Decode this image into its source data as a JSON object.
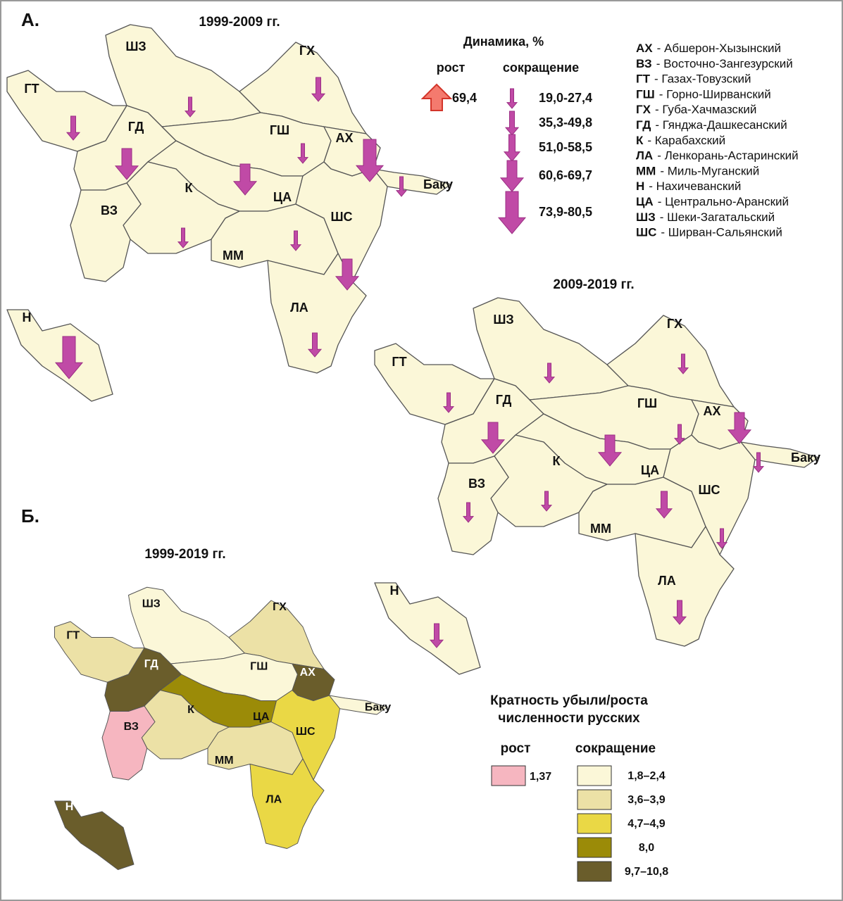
{
  "panel_a": {
    "label": "А.",
    "maps": [
      {
        "title": "1999-2009 гг.",
        "regions": [
          "ШЗ",
          "ГХ",
          "ГТ",
          "ГД",
          "ГШ",
          "АХ",
          "К",
          "ЦА",
          "ВЗ",
          "ШС",
          "ММ",
          "ЛА",
          "Н",
          "Баку"
        ]
      },
      {
        "title": "2009-2019 гг.",
        "regions": [
          "ШЗ",
          "ГХ",
          "ГТ",
          "ГД",
          "ГШ",
          "АХ",
          "К",
          "ЦА",
          "ВЗ",
          "ШС",
          "ММ",
          "ЛА",
          "Н",
          "Баку"
        ]
      }
    ],
    "legend": {
      "title": "Динамика, %",
      "growth": "рост",
      "decline": "сокращение",
      "growth_value": "69,4",
      "decline_classes": [
        "19,0-27,4",
        "35,3-49,8",
        "51,0-58,5",
        "60,6-69,7",
        "73,9-80,5"
      ]
    }
  },
  "abbreviations": [
    {
      "abbr": "АХ",
      "name": "- Абшерон-Хызынский"
    },
    {
      "abbr": "ВЗ",
      "name": "- Восточно-Зангезурский"
    },
    {
      "abbr": "ГТ",
      "name": "- Газах-Товузский"
    },
    {
      "abbr": "ГШ",
      "name": "- Горно-Ширванский"
    },
    {
      "abbr": "ГХ",
      "name": "- Губа-Хачмазский"
    },
    {
      "abbr": "ГД",
      "name": "- Гянджа-Дашкесанский"
    },
    {
      "abbr": "К",
      "name": "- Карабахский"
    },
    {
      "abbr": "ЛА",
      "name": "- Ленкорань-Астаринский"
    },
    {
      "abbr": "ММ",
      "name": "- Миль-Муганский"
    },
    {
      "abbr": "Н",
      "name": "- Нахичеванский"
    },
    {
      "abbr": "ЦА",
      "name": "- Центрально-Аранский"
    },
    {
      "abbr": "ШЗ",
      "name": "- Шеки-Загатальский"
    },
    {
      "abbr": "ШС",
      "name": "- Ширван-Сальянский"
    }
  ],
  "panel_b": {
    "label": "Б.",
    "title": "1999-2019 гг.",
    "regions": [
      "ШЗ",
      "ГХ",
      "ГТ",
      "ГД",
      "ГШ",
      "АХ",
      "К",
      "ЦА",
      "ВЗ",
      "ШС",
      "ММ",
      "ЛА",
      "Н",
      "Баку"
    ],
    "legend": {
      "title_lines": [
        "Кратность убыли/роста",
        "численности русских"
      ],
      "growth": "рост",
      "decline": "сокращение",
      "growth_item": {
        "label": "1,37",
        "color": "#f6b6c0"
      },
      "decline_items": [
        {
          "label": "1,8–2,4",
          "color": "#fbf7d8"
        },
        {
          "label": "3,6–3,9",
          "color": "#ece1a6"
        },
        {
          "label": "4,7–4,9",
          "color": "#ead845"
        },
        {
          "label": "8,0",
          "color": "#9b8b08"
        },
        {
          "label": "9,7–10,8",
          "color": "#6a5d2b"
        }
      ]
    }
  }
}
